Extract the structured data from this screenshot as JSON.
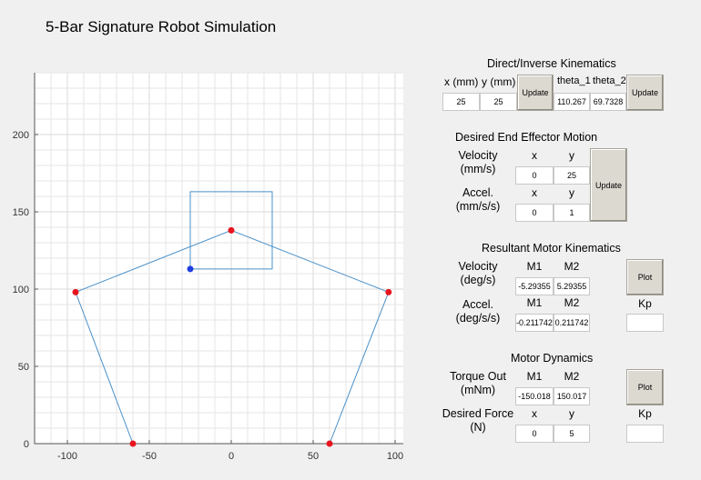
{
  "title": "5-Bar Signature Robot Simulation",
  "plot": {
    "x_ticks": [
      "-100",
      "-50",
      "0",
      "50",
      "100"
    ],
    "y_ticks": [
      "0",
      "50",
      "100",
      "150",
      "200"
    ],
    "xlim": [
      -120,
      105
    ],
    "ylim": [
      0,
      240
    ],
    "linkage": [
      [
        -60,
        0
      ],
      [
        -95,
        98
      ],
      [
        0,
        138
      ],
      [
        96,
        98
      ],
      [
        60,
        0
      ]
    ],
    "base_joints": [
      [
        -60,
        0
      ],
      [
        60,
        0
      ]
    ],
    "elbow_joints": [
      [
        -95,
        98
      ],
      [
        96,
        98
      ]
    ],
    "end_effector": [
      0,
      138
    ],
    "target_point": [
      -25,
      113
    ],
    "workspace_path": [
      [
        -25,
        113
      ],
      [
        -25,
        163
      ],
      [
        25,
        163
      ],
      [
        25,
        113
      ],
      [
        -25,
        113
      ]
    ],
    "colors": {
      "line": "#4a90c8",
      "joint": "#e8141e",
      "target": "#1f3ee0",
      "grid": "#e6e6e6"
    }
  },
  "dik": {
    "title": "Direct/Inverse Kinematics",
    "x_label": "x (mm)",
    "y_label": "y (mm)",
    "theta1_label": "theta_1",
    "theta2_label": "theta_2",
    "x_value": "25",
    "y_value": "25",
    "theta1_value": "110.267",
    "theta2_value": "69.7328",
    "update_label": "Update",
    "update2_label": "Update"
  },
  "desired": {
    "title": "Desired End Effector Motion",
    "velocity_label": "Velocity\n(mm/s)",
    "accel_label": "Accel.\n(mm/s/s)",
    "x_label": "x",
    "y_label": "y",
    "x_label2": "x",
    "y_label2": "y",
    "vel_x": "0",
    "vel_y": "25",
    "acc_x": "0",
    "acc_y": "1",
    "update_label": "Update"
  },
  "motor": {
    "title": "Resultant Motor Kinematics",
    "velocity_label": "Velocity\n(deg/s)",
    "accel_label": "Accel.\n(deg/s/s)",
    "m1_label": "M1",
    "m2_label": "M2",
    "m1_label2": "M1",
    "m2_label2": "M2",
    "vel_m1": "-5.29355",
    "vel_m2": "5.29355",
    "acc_m1": "-0.211742",
    "acc_m2": "0.211742",
    "plot_label": "Plot",
    "kp_label": "Kp",
    "kp_value": ""
  },
  "dynamics": {
    "title": "Motor Dynamics",
    "torque_label": "Torque Out\n(mNm)",
    "force_label": "Desired Force\n(N)",
    "m1_label": "M1",
    "m2_label": "M2",
    "x_label": "x",
    "y_label": "y",
    "torque_m1": "-150.018",
    "torque_m2": "150.017",
    "force_x": "0",
    "force_y": "5",
    "plot_label": "Plot",
    "kp_label": "Kp",
    "kp_value": ""
  }
}
